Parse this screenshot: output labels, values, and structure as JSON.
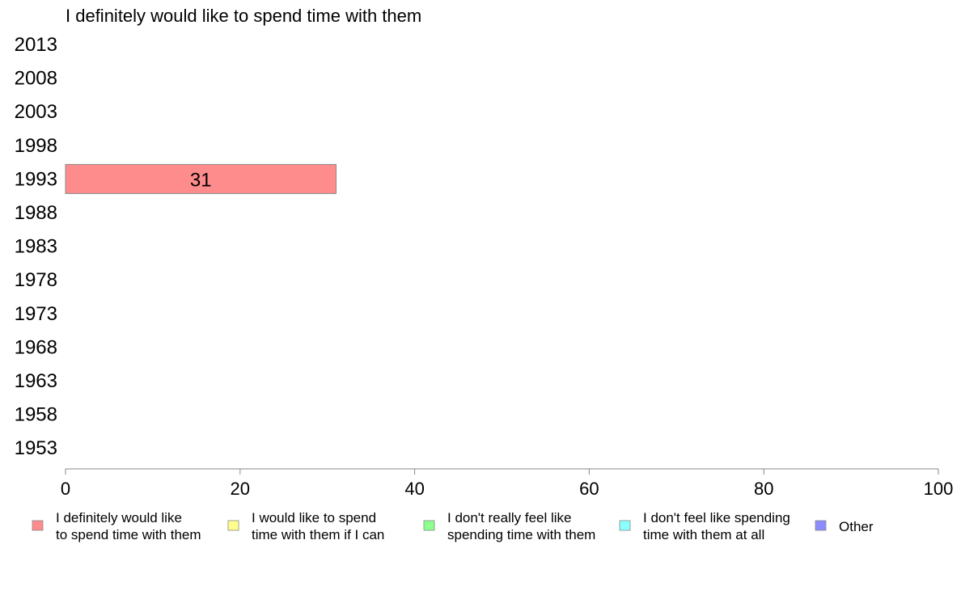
{
  "chart_data": {
    "type": "bar",
    "orientation": "horizontal",
    "title": "I definitely would like to spend time with them",
    "categories": [
      "2013",
      "2008",
      "2003",
      "1998",
      "1993",
      "1988",
      "1983",
      "1978",
      "1973",
      "1968",
      "1963",
      "1958",
      "1953"
    ],
    "series": [
      {
        "name": "I definitely would like to spend time with them",
        "legend_lines": [
          "I definitely would like",
          "to spend time with them"
        ],
        "color": "#ff8c8c",
        "values": [
          null,
          null,
          null,
          null,
          31,
          null,
          null,
          null,
          null,
          null,
          null,
          null,
          null
        ]
      }
    ],
    "xlim": [
      0,
      100
    ],
    "x_ticks": [
      0,
      20,
      40,
      60,
      80,
      100
    ],
    "grid": false,
    "legend_position": "bottom",
    "legend": [
      {
        "lines": [
          "I definitely would like",
          "to spend time with them"
        ],
        "color": "#ff8c8c"
      },
      {
        "lines": [
          "I would like to spend",
          "time with them if I can"
        ],
        "color": "#ffff8c"
      },
      {
        "lines": [
          "I don't really feel like",
          "spending time with them"
        ],
        "color": "#8cff8c"
      },
      {
        "lines": [
          "I don't feel like spending",
          "time with them at all"
        ],
        "color": "#8cffff"
      },
      {
        "lines": [
          "Other"
        ],
        "color": "#8c8cff"
      }
    ]
  }
}
